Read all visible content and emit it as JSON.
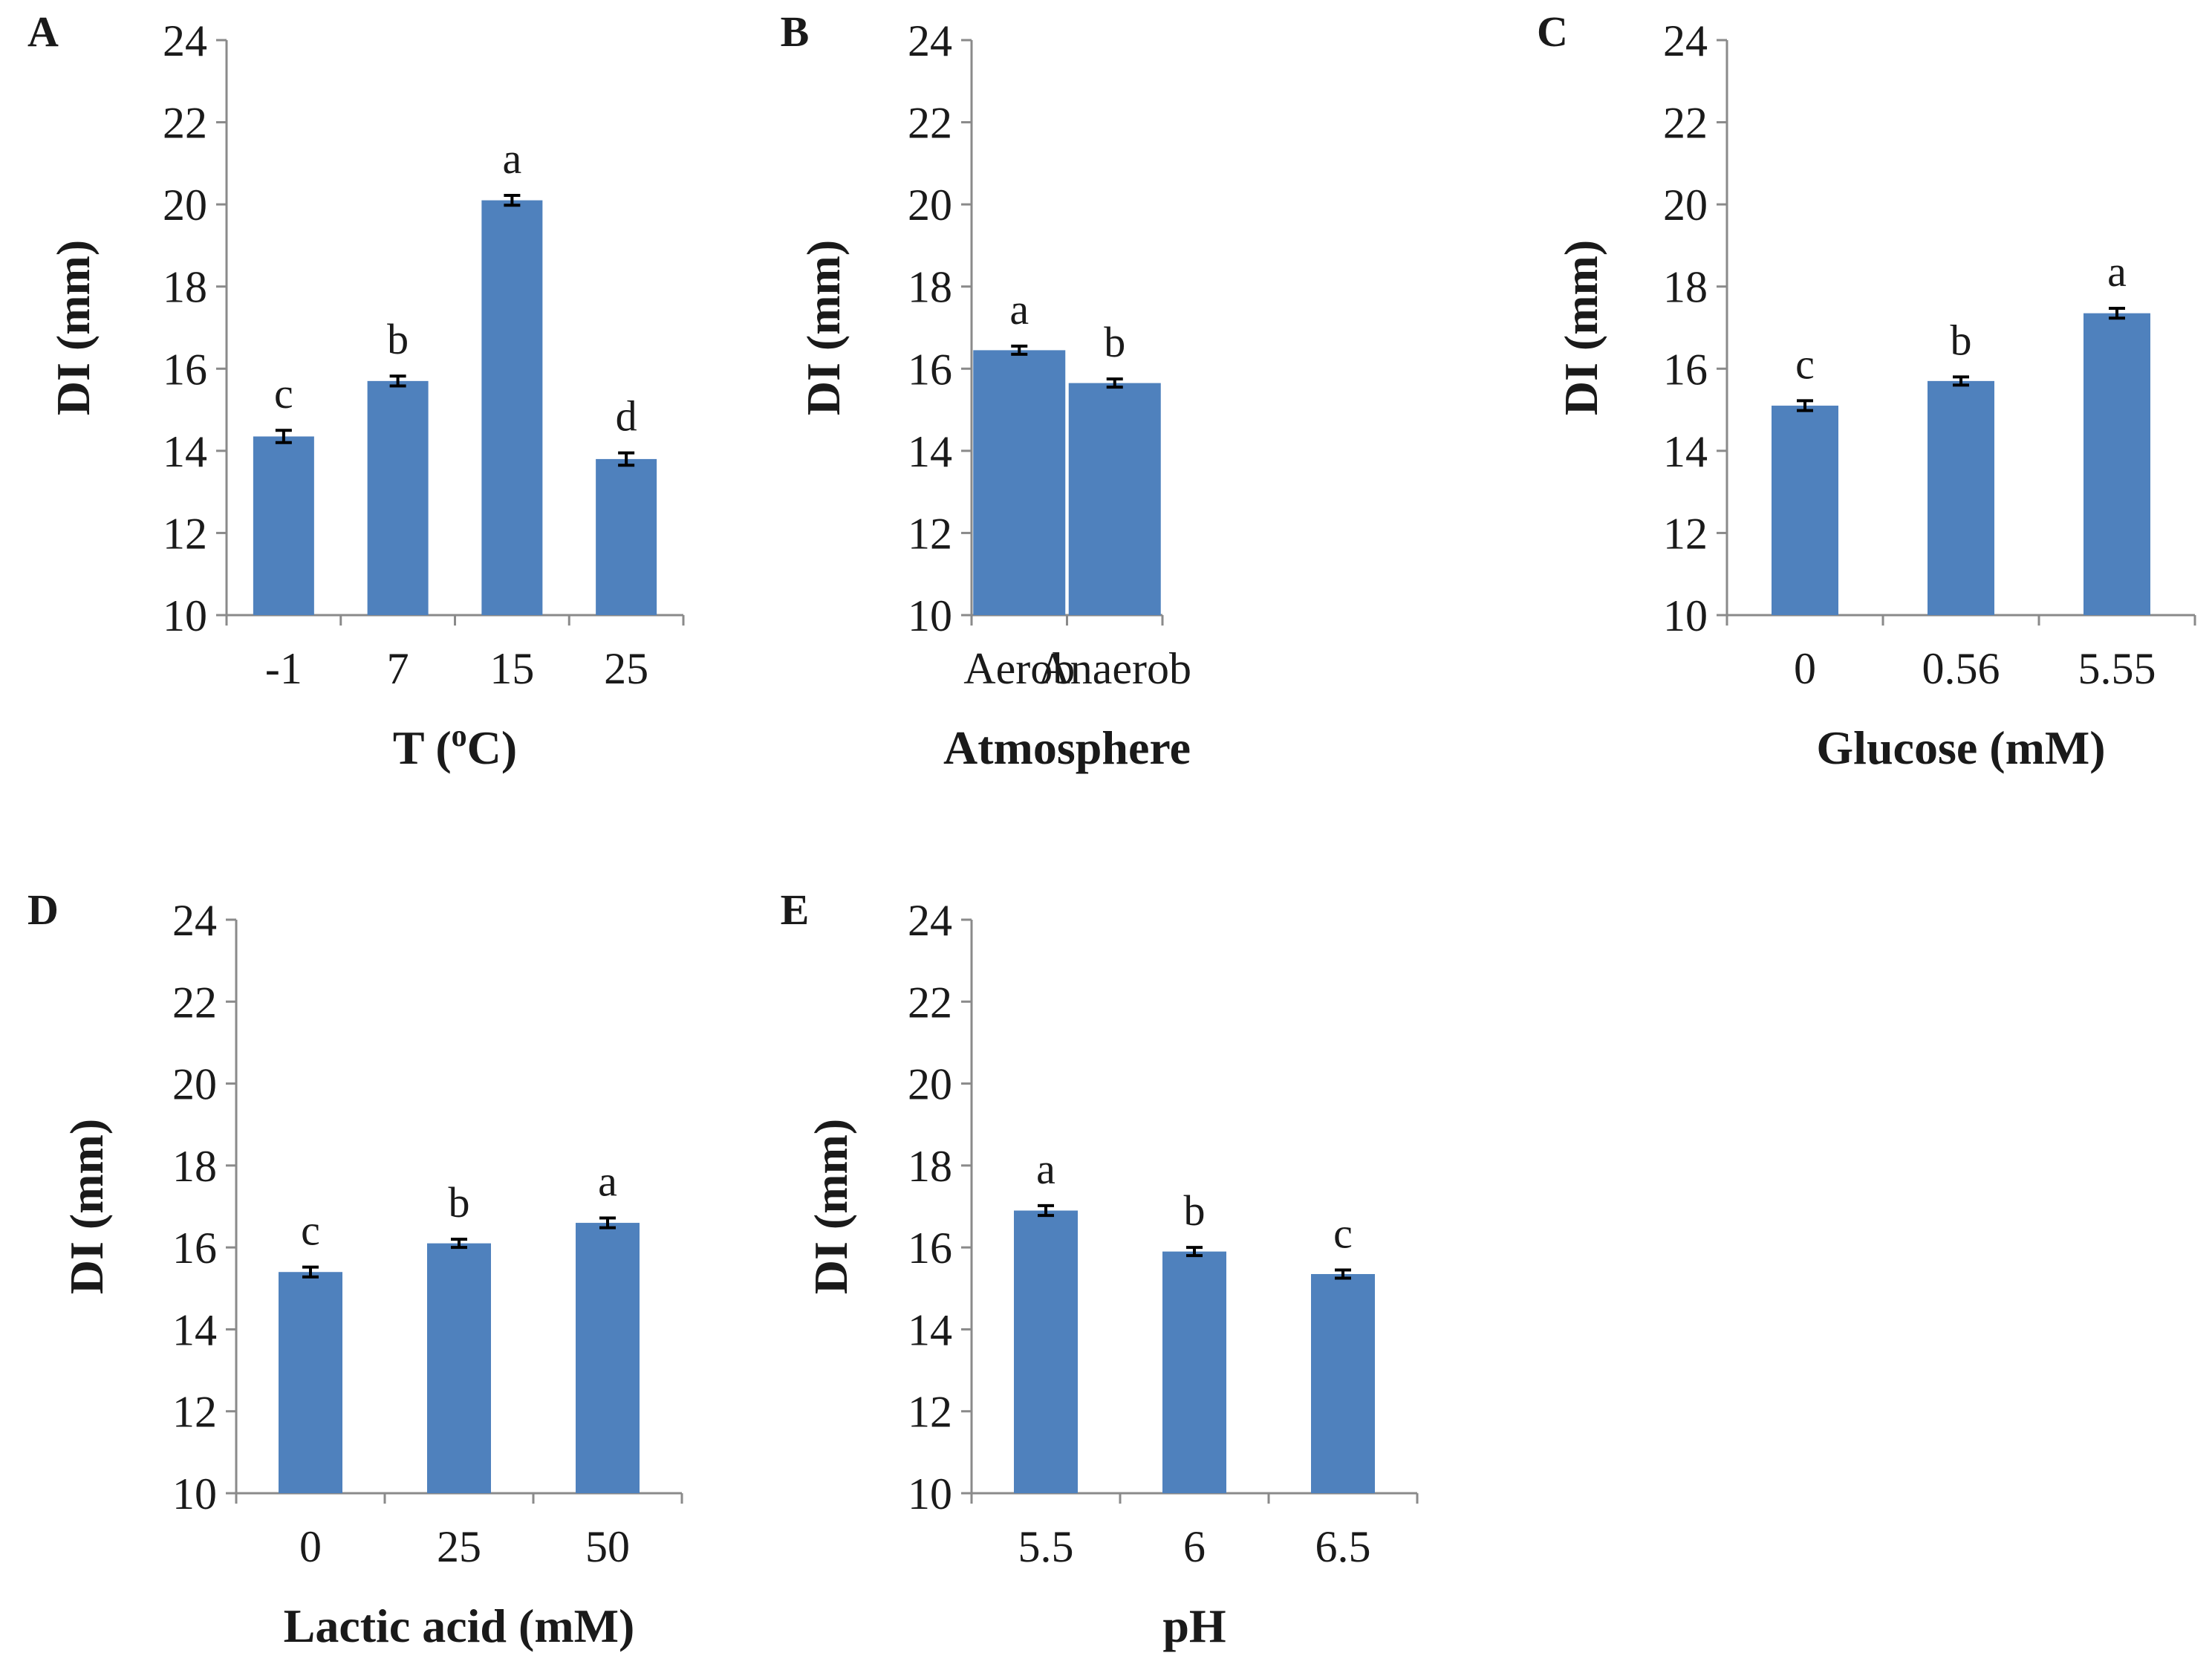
{
  "style": {
    "bar_color": "#4f81bd"
  },
  "chart_data": [
    {
      "type": "bar",
      "panel_label": "A",
      "xlabel": "T (oC)",
      "xlabel_parts": {
        "before": "T (",
        "superscript": "o",
        "after": "C)"
      },
      "ylabel": "DI (mm)",
      "ylim": [
        10,
        24
      ],
      "yticks": [
        10,
        12,
        14,
        16,
        18,
        20,
        22,
        24
      ],
      "categories": [
        "-1",
        "7",
        "15",
        "25"
      ],
      "values": [
        14.35,
        15.7,
        20.1,
        13.8
      ],
      "errors": [
        0.15,
        0.12,
        0.12,
        0.15
      ],
      "significance": [
        "c",
        "b",
        "a",
        "d"
      ]
    },
    {
      "type": "bar",
      "panel_label": "B",
      "xlabel": "Atmosphere",
      "ylabel": "DI (mm)",
      "ylim": [
        10,
        24
      ],
      "yticks": [
        10,
        12,
        14,
        16,
        18,
        20,
        22,
        24
      ],
      "categories": [
        "Aerob",
        "Anaerob"
      ],
      "values": [
        16.45,
        15.65
      ],
      "errors": [
        0.1,
        0.1
      ],
      "significance": [
        "a",
        "b"
      ]
    },
    {
      "type": "bar",
      "panel_label": "C",
      "xlabel": "Glucose (mM)",
      "ylabel": "DI (mm)",
      "ylim": [
        10,
        24
      ],
      "yticks": [
        10,
        12,
        14,
        16,
        18,
        20,
        22,
        24
      ],
      "categories": [
        "0",
        "0.56",
        "5.55"
      ],
      "values": [
        15.1,
        15.7,
        17.35
      ],
      "errors": [
        0.12,
        0.1,
        0.12
      ],
      "significance": [
        "c",
        "b",
        "a"
      ]
    },
    {
      "type": "bar",
      "panel_label": "D",
      "xlabel": "Lactic acid (mM)",
      "ylabel": "DI (mm)",
      "ylim": [
        10,
        24
      ],
      "yticks": [
        10,
        12,
        14,
        16,
        18,
        20,
        22,
        24
      ],
      "categories": [
        "0",
        "25",
        "50"
      ],
      "values": [
        15.4,
        16.1,
        16.6
      ],
      "errors": [
        0.12,
        0.1,
        0.12
      ],
      "significance": [
        "c",
        "b",
        "a"
      ]
    },
    {
      "type": "bar",
      "panel_label": "E",
      "xlabel": "pH",
      "ylabel": "DI (mm)",
      "ylim": [
        10,
        24
      ],
      "yticks": [
        10,
        12,
        14,
        16,
        18,
        20,
        22,
        24
      ],
      "categories": [
        "5.5",
        "6",
        "6.5"
      ],
      "values": [
        16.9,
        15.9,
        15.35
      ],
      "errors": [
        0.12,
        0.1,
        0.1
      ],
      "significance": [
        "a",
        "b",
        "c"
      ]
    }
  ]
}
